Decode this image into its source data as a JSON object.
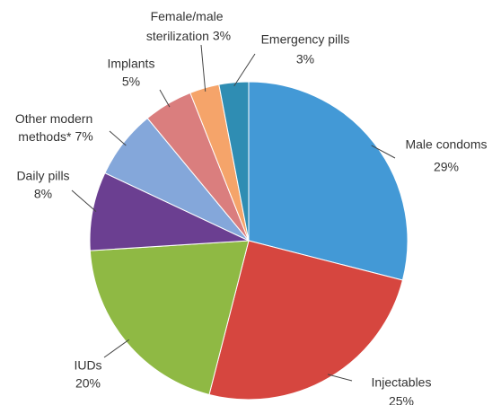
{
  "chart_data": {
    "type": "pie",
    "categories": [
      "Male condoms",
      "Injectables",
      "IUDs",
      "Daily pills",
      "Other modern methods*",
      "Implants",
      "Female/male sterilization",
      "Emergency pills"
    ],
    "values": [
      29,
      25,
      20,
      8,
      7,
      5,
      3,
      3
    ],
    "value_labels": [
      "29%",
      "25%",
      "20%",
      "8%",
      "7%",
      "5%",
      "3%",
      "3%"
    ],
    "colors": [
      "#4399d6",
      "#d6463f",
      "#8fb944",
      "#6b3f91",
      "#84a7da",
      "#da7e7e",
      "#f5a46a",
      "#2f8db3"
    ]
  }
}
